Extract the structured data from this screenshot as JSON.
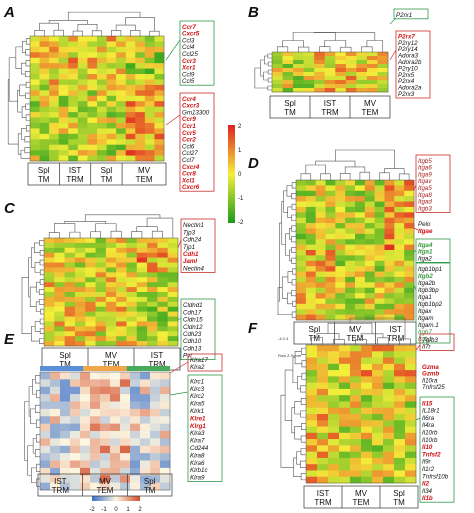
{
  "colors": {
    "heat_low": "#1a9a1a",
    "heat_mid": "#f5ef3a",
    "heat_high": "#e02020",
    "box_red": "#cc2b2b",
    "box_green": "#2f9a4a",
    "e_low": "#3a6fc8",
    "e_mid": "#fdf6e0",
    "e_high": "#d24b2a",
    "e_bar_blue": "#5a8ed6",
    "e_bar_orange": "#f2a64a",
    "e_bar_green": "#4aaa5a"
  },
  "scale": {
    "labels": [
      "2",
      "1",
      "0",
      "-1",
      "-2"
    ]
  },
  "scaleE": {
    "labels": [
      "-2",
      "-1",
      "0",
      "1",
      "2"
    ]
  },
  "scaleF": {
    "label": "Row Z-Score",
    "ticks": "-4 0 4"
  },
  "panels": [
    {
      "id": "A",
      "label": "A",
      "groups": [
        "Spl TM",
        "IST TRM",
        "Spl TM",
        "MV TEM"
      ],
      "group_lines": [
        [
          "Spl",
          "TM"
        ],
        [
          "IST",
          "TRM"
        ],
        [
          "Spl",
          "TM"
        ],
        [
          "MV",
          "TEM"
        ]
      ],
      "boxes": [
        {
          "color": "green",
          "genes": [
            {
              "t": "Ccr7",
              "s": "red"
            },
            {
              "t": "Cxcr5",
              "s": "red"
            },
            {
              "t": "Ccl3",
              "s": ""
            },
            {
              "t": "Ccl4",
              "s": ""
            },
            {
              "t": "Ccl25",
              "s": ""
            },
            {
              "t": "Ccr3",
              "s": "red"
            },
            {
              "t": "Xcr1",
              "s": "red"
            },
            {
              "t": "Ccl9",
              "s": ""
            },
            {
              "t": "Ccl5",
              "s": ""
            }
          ]
        },
        {
          "color": "red",
          "genes": [
            {
              "t": "Ccr4",
              "s": "red"
            },
            {
              "t": "Cxcr3",
              "s": "red"
            },
            {
              "t": "Gm13300",
              "s": ""
            },
            {
              "t": "Ccr9",
              "s": "red"
            },
            {
              "t": "Ccr1",
              "s": "red"
            },
            {
              "t": "Ccr5",
              "s": "red"
            },
            {
              "t": "Ccr2",
              "s": "red"
            },
            {
              "t": "Ccl6",
              "s": ""
            },
            {
              "t": "Ccl27",
              "s": ""
            },
            {
              "t": "Ccl7",
              "s": ""
            },
            {
              "t": "Cxcr4",
              "s": "red"
            },
            {
              "t": "Ccr8",
              "s": "red"
            },
            {
              "t": "Xcl1",
              "s": "red"
            },
            {
              "t": "Cxcr6",
              "s": "red"
            }
          ]
        }
      ]
    },
    {
      "id": "B",
      "label": "B",
      "groups": [
        "Spl TM",
        "IST TRM",
        "MV TEM"
      ],
      "group_lines": [
        [
          "Spl",
          "TM"
        ],
        [
          "IST",
          "TRM"
        ],
        [
          "MV",
          "TEM"
        ]
      ],
      "top_box": {
        "color": "green",
        "genes": [
          {
            "t": "P2rx1",
            "s": ""
          }
        ]
      },
      "boxes": [
        {
          "color": "red",
          "genes": [
            {
              "t": "P2rx7",
              "s": "red"
            },
            {
              "t": "P2ry12",
              "s": ""
            },
            {
              "t": "P2ry14",
              "s": ""
            },
            {
              "t": "Adora3",
              "s": ""
            },
            {
              "t": "Adora2b",
              "s": ""
            },
            {
              "t": "P2ry10",
              "s": ""
            },
            {
              "t": "P2rx5",
              "s": ""
            },
            {
              "t": "P2rx4",
              "s": ""
            },
            {
              "t": "Adora2a",
              "s": ""
            },
            {
              "t": "P2rx3",
              "s": ""
            }
          ]
        }
      ]
    },
    {
      "id": "C",
      "label": "C",
      "groups": [
        "Spl TM",
        "MV TEM",
        "IST TRM"
      ],
      "group_lines": [
        [
          "Spl",
          "TM"
        ],
        [
          "MV",
          "TEM"
        ],
        [
          "IST",
          "TRM"
        ]
      ],
      "boxes": [
        {
          "color": "red",
          "genes": [
            {
              "t": "Nectin1",
              "s": ""
            },
            {
              "t": "Tjp3",
              "s": ""
            },
            {
              "t": "Cdh24",
              "s": ""
            },
            {
              "t": "Tjp1",
              "s": ""
            },
            {
              "t": "Cdh1",
              "s": "red"
            },
            {
              "t": "Jaml",
              "s": "red"
            },
            {
              "t": "Nectin4",
              "s": ""
            }
          ]
        },
        {
          "color": "green",
          "genes": [
            {
              "t": "Cldnd1",
              "s": ""
            },
            {
              "t": "Cdh17",
              "s": ""
            },
            {
              "t": "Cldn15",
              "s": ""
            },
            {
              "t": "Cldn12",
              "s": ""
            },
            {
              "t": "Cdh23",
              "s": ""
            },
            {
              "t": "Cdh10",
              "s": ""
            },
            {
              "t": "Cdh13",
              "s": ""
            },
            {
              "t": "Pvr",
              "s": ""
            }
          ]
        }
      ]
    },
    {
      "id": "D",
      "label": "D",
      "groups": [
        "Spl TM",
        "MV TEM",
        "IST TRM"
      ],
      "group_lines": [
        [
          "Spl",
          "TM"
        ],
        [
          "MV",
          "TEM"
        ],
        [
          "IST",
          "TRM"
        ]
      ],
      "boxes": [
        {
          "color": "red",
          "genes": [
            {
              "t": "Itgb5",
              "s": "dkred"
            },
            {
              "t": "Itga6",
              "s": "dkred"
            },
            {
              "t": "Itga9",
              "s": "dkred"
            },
            {
              "t": "Itgav",
              "s": "dkred"
            },
            {
              "t": "Itga5",
              "s": "dkred"
            },
            {
              "t": "Itga8",
              "s": "dkred"
            },
            {
              "t": "Itgad",
              "s": "dkred"
            },
            {
              "t": "Itgb3",
              "s": "dkred"
            }
          ]
        },
        {
          "color": "red",
          "genes": [
            {
              "t": "Itgae",
              "s": "red"
            }
          ]
        },
        {
          "color": "green",
          "genes": [
            {
              "t": "Itga4",
              "s": "green"
            },
            {
              "t": "Itga1",
              "s": "green"
            },
            {
              "t": "Itga2",
              "s": ""
            }
          ]
        },
        {
          "color": "green",
          "genes": [
            {
              "t": "Itgb1bp1",
              "s": ""
            },
            {
              "t": "Itgb2",
              "s": "green"
            },
            {
              "t": "Itga2b",
              "s": ""
            },
            {
              "t": "Itgb3bp",
              "s": ""
            },
            {
              "t": "Itga1",
              "s": ""
            },
            {
              "t": "Itgb1bp2",
              "s": ""
            },
            {
              "t": "Itgax",
              "s": ""
            },
            {
              "t": "Itgam",
              "s": ""
            },
            {
              "t": "Itgam.1",
              "s": ""
            },
            {
              "t": "Itgb7",
              "s": "dkgreen"
            },
            {
              "t": "Itgb1",
              "s": "dkgreen"
            }
          ]
        }
      ],
      "plain": [
        {
          "t": "Pelo",
          "s": ""
        }
      ]
    },
    {
      "id": "E",
      "label": "E",
      "groups": [
        "IST TRM",
        "MV TEM",
        "Spl TM"
      ],
      "group_lines": [
        [
          "IST",
          "TRM"
        ],
        [
          "MV",
          "TEM"
        ],
        [
          "Spl",
          "TM"
        ]
      ],
      "top_box": {
        "color": "red",
        "genes": [
          {
            "t": "Klra17",
            "s": ""
          },
          {
            "t": "Klra2",
            "s": ""
          }
        ]
      },
      "boxes": [
        {
          "color": "green",
          "genes": [
            {
              "t": "Klrc1",
              "s": ""
            },
            {
              "t": "Klrc3",
              "s": ""
            },
            {
              "t": "Klrc2",
              "s": ""
            },
            {
              "t": "Klra5",
              "s": ""
            },
            {
              "t": "Klrk1",
              "s": ""
            },
            {
              "t": "Klre1",
              "s": "red"
            },
            {
              "t": "Klrg1",
              "s": "red"
            },
            {
              "t": "Klra3",
              "s": ""
            },
            {
              "t": "Klra7",
              "s": ""
            },
            {
              "t": "Cd244",
              "s": ""
            },
            {
              "t": "Klra8",
              "s": ""
            },
            {
              "t": "Klra6",
              "s": ""
            },
            {
              "t": "Klrb1c",
              "s": ""
            },
            {
              "t": "Klra9",
              "s": ""
            }
          ]
        }
      ]
    },
    {
      "id": "F",
      "label": "F",
      "groups": [
        "IST TRM",
        "MV TEM",
        "Spl TM"
      ],
      "group_lines": [
        [
          "IST",
          "TRM"
        ],
        [
          "MV",
          "TEM"
        ],
        [
          "Spl",
          "TM"
        ]
      ],
      "top_box": {
        "color": "red",
        "genes": [
          {
            "t": "Tgfb3",
            "s": ""
          },
          {
            "t": "Il7r",
            "s": ""
          }
        ]
      },
      "plain": [
        {
          "t": "Gzma",
          "s": "red"
        },
        {
          "t": "Gzmb",
          "s": "red"
        },
        {
          "t": "Il10ra",
          "s": ""
        },
        {
          "t": "Tnfrsf25",
          "s": ""
        }
      ],
      "boxes": [
        {
          "color": "green",
          "genes": [
            {
              "t": "Il15",
              "s": "red"
            },
            {
              "t": "IL18r1",
              "s": ""
            },
            {
              "t": "Il6ra",
              "s": ""
            },
            {
              "t": "Il4ra",
              "s": ""
            },
            {
              "t": "Il10rb",
              "s": ""
            },
            {
              "t": "Il10rb",
              "s": ""
            },
            {
              "t": "Il10",
              "s": "red"
            },
            {
              "t": "Tnfsf2",
              "s": "red"
            },
            {
              "t": "Il9r",
              "s": ""
            },
            {
              "t": "Il1r2",
              "s": ""
            },
            {
              "t": "Tnfrsf10b",
              "s": ""
            },
            {
              "t": "Il2",
              "s": "red"
            },
            {
              "t": "Il34",
              "s": ""
            },
            {
              "t": "Il1b",
              "s": "red"
            }
          ]
        }
      ]
    }
  ]
}
